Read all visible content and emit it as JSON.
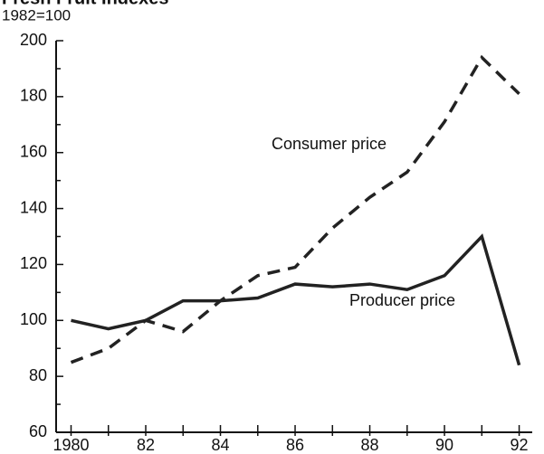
{
  "chart_data": {
    "type": "line",
    "title": "Fresh Fruit Indexes",
    "subtitle": "1982=100",
    "x": [
      1980,
      1981,
      1982,
      1983,
      1984,
      1985,
      1986,
      1987,
      1988,
      1989,
      1990,
      1991,
      1992
    ],
    "series": [
      {
        "name": "Consumer price",
        "color": "#222222",
        "linestyle": "dashed",
        "values": [
          85,
          90,
          100,
          96,
          107,
          116,
          119,
          133,
          144,
          153,
          171,
          194,
          181
        ]
      },
      {
        "name": "Producer price",
        "color": "#222222",
        "linestyle": "solid",
        "values": [
          100,
          97,
          100,
          107,
          107,
          108,
          113,
          112,
          113,
          111,
          116,
          130,
          84
        ]
      }
    ],
    "xlim": [
      1979.6,
      1992.35
    ],
    "xticks": [
      {
        "value": 1980,
        "label": "1980"
      },
      {
        "value": 1982,
        "label": "82"
      },
      {
        "value": 1984,
        "label": "84"
      },
      {
        "value": 1986,
        "label": "86"
      },
      {
        "value": 1988,
        "label": "88"
      },
      {
        "value": 1990,
        "label": "90"
      },
      {
        "value": 1992,
        "label": "92"
      }
    ],
    "xminorticks": [
      1981,
      1983,
      1985,
      1987,
      1989,
      1991
    ],
    "ylim": [
      60,
      200
    ],
    "yticks": [
      60,
      80,
      100,
      120,
      140,
      160,
      180,
      200
    ],
    "yminorticks": [
      70,
      90,
      110,
      130,
      150,
      170,
      190
    ],
    "grid": false
  }
}
